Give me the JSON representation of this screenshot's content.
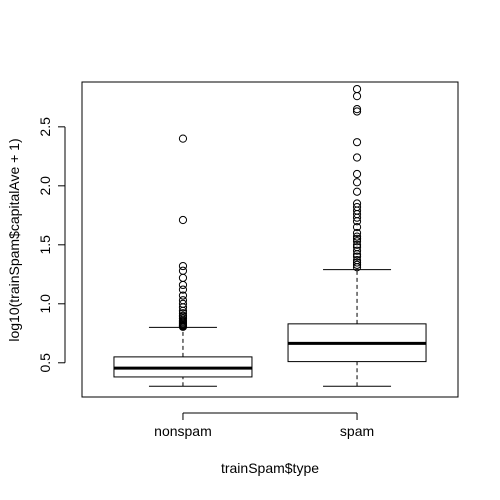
{
  "chart_data": {
    "type": "boxplot",
    "title": "",
    "xlabel": "trainSpam$type",
    "ylabel": "log10(trainSpam$capitalAve + 1)",
    "categories": [
      "nonspam",
      "spam"
    ],
    "ylim": [
      0.21,
      2.88
    ],
    "yticks": [
      0.5,
      1.0,
      1.5,
      2.0,
      2.5
    ],
    "ytick_labels": [
      "0.5",
      "1.0",
      "1.5",
      "2.0",
      "2.5"
    ],
    "grid": false,
    "legend": "none",
    "boxes": [
      {
        "category": "nonspam",
        "whisker_low": 0.301,
        "q1": 0.38,
        "median": 0.455,
        "q3": 0.55,
        "whisker_high": 0.8,
        "outliers": [
          0.805,
          0.81,
          0.815,
          0.82,
          0.83,
          0.84,
          0.85,
          0.86,
          0.875,
          0.89,
          0.9,
          0.92,
          0.94,
          0.97,
          1.0,
          1.03,
          1.07,
          1.12,
          1.16,
          1.22,
          1.28,
          1.32,
          1.71,
          2.4
        ]
      },
      {
        "category": "spam",
        "whisker_low": 0.301,
        "q1": 0.51,
        "median": 0.665,
        "q3": 0.83,
        "whisker_high": 1.29,
        "outliers": [
          1.31,
          1.33,
          1.35,
          1.37,
          1.4,
          1.42,
          1.45,
          1.48,
          1.5,
          1.53,
          1.55,
          1.57,
          1.6,
          1.65,
          1.7,
          1.73,
          1.76,
          1.79,
          1.82,
          1.85,
          1.95,
          2.03,
          2.1,
          2.24,
          2.37,
          2.63,
          2.65,
          2.76,
          2.82
        ]
      }
    ],
    "colors": {
      "box_fill": "#ffffff",
      "stroke": "#000000",
      "background": "#ffffff"
    }
  }
}
